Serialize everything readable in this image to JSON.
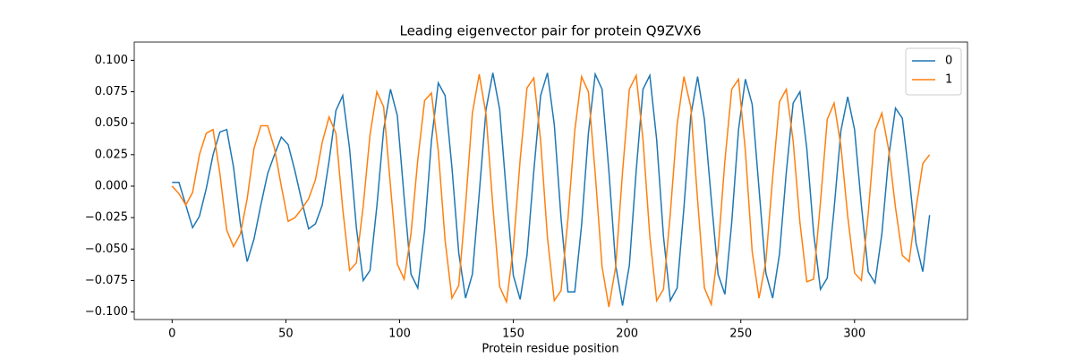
{
  "chart_data": {
    "type": "line",
    "title": "Leading eigenvector pair for protein Q9ZVX6",
    "x_label": "Protein residue position",
    "x": [
      0,
      3,
      6,
      9,
      12,
      15,
      18,
      21,
      24,
      27,
      30,
      33,
      36,
      39,
      42,
      45,
      48,
      51,
      54,
      57,
      60,
      63,
      66,
      69,
      72,
      75,
      78,
      81,
      84,
      87,
      90,
      93,
      96,
      99,
      102,
      105,
      108,
      111,
      114,
      117,
      120,
      123,
      126,
      129,
      132,
      135,
      138,
      141,
      144,
      147,
      150,
      153,
      156,
      159,
      162,
      165,
      168,
      171,
      174,
      177,
      180,
      183,
      186,
      189,
      192,
      195,
      198,
      201,
      204,
      207,
      210,
      213,
      216,
      219,
      222,
      225,
      228,
      231,
      234,
      237,
      240,
      243,
      246,
      249,
      252,
      255,
      258,
      261,
      264,
      267,
      270,
      273,
      276,
      279,
      282,
      285,
      288,
      291,
      294,
      297,
      300,
      303,
      306,
      309,
      312,
      315,
      318,
      321,
      324,
      327,
      330,
      333
    ],
    "series": [
      {
        "name": "0",
        "color": "#1f77b4",
        "values": [
          0.003,
          0.003,
          -0.015,
          -0.033,
          -0.024,
          -0.002,
          0.025,
          0.043,
          0.045,
          0.015,
          -0.03,
          -0.06,
          -0.042,
          -0.015,
          0.01,
          0.025,
          0.039,
          0.033,
          0.012,
          -0.012,
          -0.034,
          -0.03,
          -0.015,
          0.02,
          0.06,
          0.072,
          0.03,
          -0.033,
          -0.075,
          -0.067,
          -0.016,
          0.045,
          0.077,
          0.056,
          -0.009,
          -0.07,
          -0.081,
          -0.035,
          0.036,
          0.082,
          0.072,
          0.015,
          -0.053,
          -0.089,
          -0.07,
          -0.006,
          0.061,
          0.09,
          0.061,
          -0.007,
          -0.071,
          -0.09,
          -0.055,
          0.012,
          0.072,
          0.09,
          0.049,
          -0.026,
          -0.084,
          -0.084,
          -0.031,
          0.042,
          0.089,
          0.077,
          0.012,
          -0.063,
          -0.095,
          -0.063,
          0.012,
          0.077,
          0.088,
          0.037,
          -0.04,
          -0.091,
          -0.081,
          -0.017,
          0.056,
          0.087,
          0.053,
          -0.01,
          -0.07,
          -0.086,
          -0.029,
          0.045,
          0.085,
          0.065,
          -0.002,
          -0.069,
          -0.089,
          -0.054,
          0.011,
          0.066,
          0.075,
          0.03,
          -0.037,
          -0.082,
          -0.073,
          -0.018,
          0.044,
          0.071,
          0.045,
          -0.015,
          -0.068,
          -0.077,
          -0.038,
          0.023,
          0.062,
          0.054,
          0.008,
          -0.045,
          -0.068,
          -0.023
        ]
      },
      {
        "name": "1",
        "color": "#ff7f0e",
        "values": [
          0.0,
          -0.006,
          -0.015,
          -0.005,
          0.025,
          0.042,
          0.045,
          0.01,
          -0.035,
          -0.048,
          -0.038,
          -0.01,
          0.03,
          0.048,
          0.048,
          0.03,
          0.0,
          -0.028,
          -0.025,
          -0.018,
          -0.01,
          0.005,
          0.035,
          0.055,
          0.042,
          -0.018,
          -0.067,
          -0.061,
          -0.016,
          0.041,
          0.075,
          0.063,
          0.0,
          -0.062,
          -0.074,
          -0.038,
          0.021,
          0.068,
          0.074,
          0.028,
          -0.043,
          -0.089,
          -0.079,
          -0.015,
          0.058,
          0.089,
          0.057,
          -0.016,
          -0.08,
          -0.092,
          -0.049,
          0.021,
          0.078,
          0.086,
          0.036,
          -0.041,
          -0.091,
          -0.083,
          -0.026,
          0.044,
          0.087,
          0.075,
          0.01,
          -0.064,
          -0.096,
          -0.064,
          0.011,
          0.077,
          0.088,
          0.037,
          -0.04,
          -0.091,
          -0.082,
          -0.022,
          0.049,
          0.087,
          0.063,
          -0.011,
          -0.081,
          -0.094,
          -0.051,
          0.02,
          0.077,
          0.085,
          0.028,
          -0.052,
          -0.089,
          -0.06,
          0.007,
          0.067,
          0.077,
          0.036,
          -0.029,
          -0.076,
          -0.074,
          -0.013,
          0.053,
          0.066,
          0.032,
          -0.024,
          -0.069,
          -0.075,
          -0.022,
          0.044,
          0.058,
          0.029,
          -0.017,
          -0.055,
          -0.06,
          -0.018,
          0.018,
          0.025
        ]
      }
    ],
    "xlim": [
      -16.65,
      349.65
    ],
    "xticks": [
      0,
      50,
      100,
      150,
      200,
      250,
      300
    ],
    "ylim": [
      -0.106,
      0.1145
    ],
    "yticks": [
      {
        "value": -0.1,
        "label": "−0.100"
      },
      {
        "value": -0.075,
        "label": "−0.075"
      },
      {
        "value": -0.05,
        "label": "−0.050"
      },
      {
        "value": -0.025,
        "label": "−0.025"
      },
      {
        "value": 0,
        "label": "0.000"
      },
      {
        "value": 0.025,
        "label": "0.025"
      },
      {
        "value": 0.05,
        "label": "0.050"
      },
      {
        "value": 0.075,
        "label": "0.075"
      },
      {
        "value": 0.1,
        "label": "0.100"
      }
    ],
    "legend": "upper right",
    "grid": false
  }
}
